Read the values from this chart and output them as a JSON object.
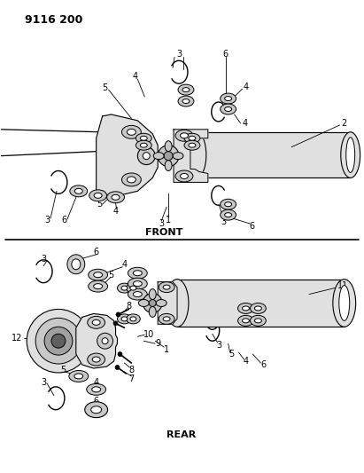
{
  "title": "9116 200",
  "bg": "#ffffff",
  "lc": "#000000",
  "gray1": "#c8c8c8",
  "gray2": "#e0e0e0",
  "gray3": "#a0a0a0",
  "front_label": "FRONT",
  "rear_label": "REAR"
}
